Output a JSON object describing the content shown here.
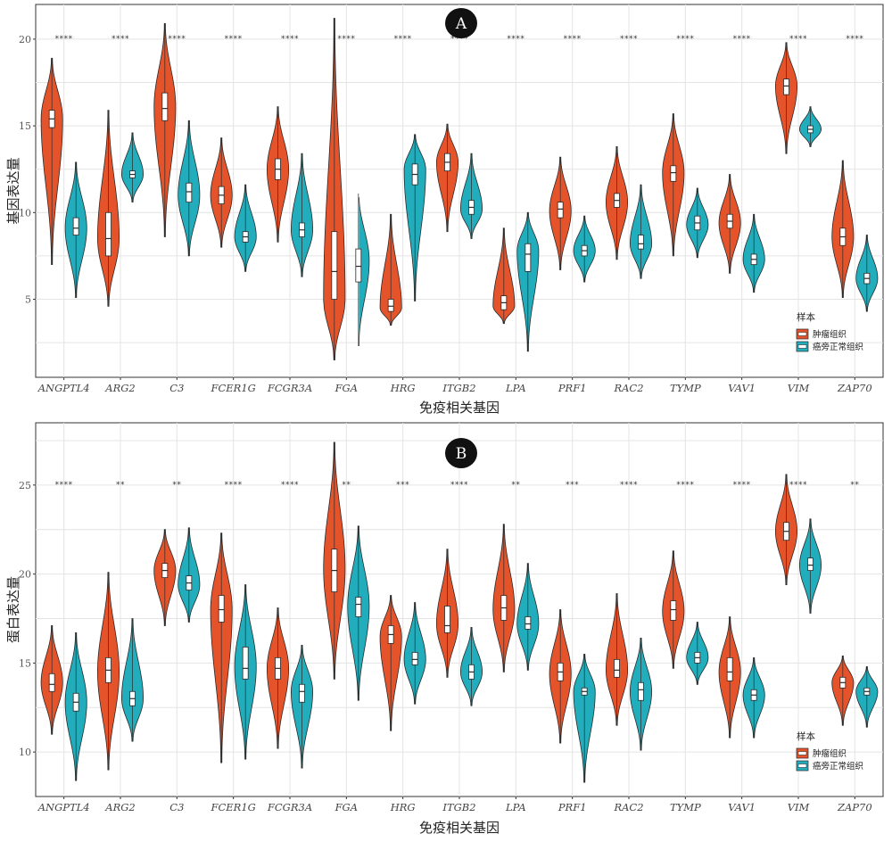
{
  "colors": {
    "tumor": "#E5532B",
    "normal": "#22ADBC",
    "outline": "#2a2a2a"
  },
  "xlabel": "免疫相关基因",
  "legend": {
    "title": "样本",
    "labels": [
      "肿瘤组织",
      "癌旁正常组织"
    ]
  },
  "chart_data": [
    {
      "type": "violin",
      "panel": "A",
      "ylabel": "基因表达量",
      "ylim": [
        0.5,
        22
      ],
      "yticks": [
        5,
        10,
        15,
        20
      ],
      "categories": [
        "ANGPTL4",
        "ARG2",
        "C3",
        "FCER1G",
        "FCGR3A",
        "FGA",
        "HRG",
        "ITGB2",
        "LPA",
        "PRF1",
        "RAC2",
        "TYMP",
        "VAV1",
        "VIM",
        "ZAP70"
      ],
      "significance": [
        "****",
        "****",
        "****",
        "****",
        "****",
        "****",
        "****",
        "****",
        "****",
        "****",
        "****",
        "****",
        "****",
        "****",
        "****"
      ],
      "sig_y": 19.9,
      "series": [
        {
          "name": "肿瘤组织",
          "groups": [
            {
              "min": 7.0,
              "max": 18.9,
              "q1": 14.9,
              "med": 15.4,
              "q3": 15.9,
              "mode": 15.4
            },
            {
              "min": 4.6,
              "max": 15.9,
              "q1": 7.5,
              "med": 8.5,
              "q3": 10.0,
              "mode": 8.5
            },
            {
              "min": 8.6,
              "max": 20.9,
              "q1": 15.3,
              "med": 16.0,
              "q3": 16.9,
              "mode": 16.1
            },
            {
              "min": 8.0,
              "max": 14.3,
              "q1": 10.5,
              "med": 11.0,
              "q3": 11.5,
              "mode": 11.0
            },
            {
              "min": 8.3,
              "max": 16.1,
              "q1": 11.9,
              "med": 12.5,
              "q3": 13.1,
              "mode": 12.5
            },
            {
              "min": 1.5,
              "max": 21.2,
              "q1": 5.0,
              "med": 6.6,
              "q3": 8.9,
              "mode": 5.0
            },
            {
              "min": 3.5,
              "max": 9.9,
              "q1": 4.3,
              "med": 4.6,
              "q3": 5.0,
              "mode": 4.5
            },
            {
              "min": 8.9,
              "max": 15.1,
              "q1": 12.4,
              "med": 12.9,
              "q3": 13.4,
              "mode": 12.9
            },
            {
              "min": 3.6,
              "max": 9.1,
              "q1": 4.4,
              "med": 4.8,
              "q3": 5.2,
              "mode": 4.6
            },
            {
              "min": 6.7,
              "max": 13.2,
              "q1": 9.7,
              "med": 10.2,
              "q3": 10.6,
              "mode": 10.1
            },
            {
              "min": 7.3,
              "max": 13.8,
              "q1": 10.3,
              "med": 10.7,
              "q3": 11.1,
              "mode": 10.6
            },
            {
              "min": 7.5,
              "max": 15.7,
              "q1": 11.8,
              "med": 12.3,
              "q3": 12.7,
              "mode": 12.3
            },
            {
              "min": 6.5,
              "max": 12.2,
              "q1": 9.1,
              "med": 9.5,
              "q3": 9.9,
              "mode": 9.4
            },
            {
              "min": 13.4,
              "max": 19.8,
              "q1": 16.8,
              "med": 17.3,
              "q3": 17.7,
              "mode": 17.3
            },
            {
              "min": 5.1,
              "max": 13.0,
              "q1": 8.1,
              "med": 8.6,
              "q3": 9.1,
              "mode": 8.6
            }
          ]
        },
        {
          "name": "癌旁正常组织",
          "groups": [
            {
              "min": 5.1,
              "max": 12.9,
              "q1": 8.7,
              "med": 9.1,
              "q3": 9.7,
              "mode": 9.1
            },
            {
              "min": 10.6,
              "max": 14.6,
              "q1": 12.0,
              "med": 12.2,
              "q3": 12.4,
              "mode": 12.2
            },
            {
              "min": 7.5,
              "max": 15.3,
              "q1": 10.6,
              "med": 11.2,
              "q3": 11.7,
              "mode": 11.0
            },
            {
              "min": 6.6,
              "max": 11.6,
              "q1": 8.3,
              "med": 8.6,
              "q3": 8.9,
              "mode": 8.6
            },
            {
              "min": 6.3,
              "max": 13.4,
              "q1": 8.6,
              "med": 9.0,
              "q3": 9.4,
              "mode": 9.0
            },
            {
              "min": 2.3,
              "max": 11.1,
              "q1": 6.0,
              "med": 6.9,
              "q3": 7.9,
              "mode": 7.2
            },
            {
              "min": 4.9,
              "max": 14.5,
              "q1": 11.6,
              "med": 12.2,
              "q3": 12.8,
              "mode": 12.5
            },
            {
              "min": 8.5,
              "max": 13.4,
              "q1": 9.9,
              "med": 10.3,
              "q3": 10.7,
              "mode": 10.2
            },
            {
              "min": 2.0,
              "max": 10.0,
              "q1": 6.6,
              "med": 7.6,
              "q3": 8.2,
              "mode": 7.8
            },
            {
              "min": 6.0,
              "max": 9.8,
              "q1": 7.5,
              "med": 7.8,
              "q3": 8.1,
              "mode": 7.8
            },
            {
              "min": 6.2,
              "max": 11.6,
              "q1": 7.9,
              "med": 8.2,
              "q3": 8.7,
              "mode": 8.2
            },
            {
              "min": 7.4,
              "max": 11.4,
              "q1": 9.0,
              "med": 9.4,
              "q3": 9.8,
              "mode": 9.3
            },
            {
              "min": 5.4,
              "max": 9.9,
              "q1": 7.0,
              "med": 7.3,
              "q3": 7.6,
              "mode": 7.3
            },
            {
              "min": 13.8,
              "max": 16.1,
              "q1": 14.6,
              "med": 14.8,
              "q3": 15.0,
              "mode": 14.8
            },
            {
              "min": 4.3,
              "max": 8.7,
              "q1": 5.9,
              "med": 6.2,
              "q3": 6.5,
              "mode": 6.2
            }
          ]
        }
      ]
    },
    {
      "type": "violin",
      "panel": "B",
      "ylabel": "蛋白表达量",
      "ylim": [
        7.5,
        28.5
      ],
      "yticks": [
        10,
        15,
        20,
        25
      ],
      "categories": [
        "ANGPTL4",
        "ARG2",
        "C3",
        "FCER1G",
        "FCGR3A",
        "FGA",
        "HRG",
        "ITGB2",
        "LPA",
        "PRF1",
        "RAC2",
        "TYMP",
        "VAV1",
        "VIM",
        "ZAP70"
      ],
      "significance": [
        "****",
        "**",
        "**",
        "****",
        "****",
        "**",
        "***",
        "****",
        "**",
        "***",
        "****",
        "****",
        "****",
        "****",
        "**"
      ],
      "sig_y": 24.9,
      "series": [
        {
          "name": "肿瘤组织",
          "groups": [
            {
              "min": 11.0,
              "max": 17.1,
              "q1": 13.4,
              "med": 13.8,
              "q3": 14.4,
              "mode": 13.9
            },
            {
              "min": 9.0,
              "max": 20.1,
              "q1": 13.9,
              "med": 14.6,
              "q3": 15.3,
              "mode": 14.5
            },
            {
              "min": 17.1,
              "max": 22.5,
              "q1": 19.8,
              "med": 20.2,
              "q3": 20.6,
              "mode": 20.2
            },
            {
              "min": 9.4,
              "max": 22.3,
              "q1": 17.3,
              "med": 18.0,
              "q3": 18.8,
              "mode": 18.0
            },
            {
              "min": 10.2,
              "max": 18.1,
              "q1": 14.1,
              "med": 14.7,
              "q3": 15.3,
              "mode": 14.7
            },
            {
              "min": 14.1,
              "max": 27.4,
              "q1": 19.0,
              "med": 20.2,
              "q3": 21.4,
              "mode": 20.3
            },
            {
              "min": 11.2,
              "max": 18.8,
              "q1": 16.1,
              "med": 16.6,
              "q3": 17.1,
              "mode": 16.5
            },
            {
              "min": 14.2,
              "max": 21.4,
              "q1": 16.7,
              "med": 17.1,
              "q3": 18.2,
              "mode": 17.2
            },
            {
              "min": 14.5,
              "max": 22.8,
              "q1": 17.4,
              "med": 18.1,
              "q3": 18.8,
              "mode": 18.0
            },
            {
              "min": 10.5,
              "max": 18.0,
              "q1": 14.0,
              "med": 14.5,
              "q3": 15.0,
              "mode": 14.4
            },
            {
              "min": 11.5,
              "max": 18.9,
              "q1": 14.2,
              "med": 14.6,
              "q3": 15.2,
              "mode": 14.6
            },
            {
              "min": 14.7,
              "max": 21.3,
              "q1": 17.4,
              "med": 18.0,
              "q3": 18.5,
              "mode": 17.9
            },
            {
              "min": 10.8,
              "max": 17.6,
              "q1": 14.0,
              "med": 14.5,
              "q3": 15.3,
              "mode": 14.5
            },
            {
              "min": 19.4,
              "max": 25.6,
              "q1": 21.9,
              "med": 22.4,
              "q3": 22.9,
              "mode": 22.4
            },
            {
              "min": 11.5,
              "max": 15.4,
              "q1": 13.6,
              "med": 13.9,
              "q3": 14.2,
              "mode": 13.9
            }
          ]
        },
        {
          "name": "癌旁正常组织",
          "groups": [
            {
              "min": 8.4,
              "max": 16.7,
              "q1": 12.3,
              "med": 12.8,
              "q3": 13.3,
              "mode": 12.8
            },
            {
              "min": 10.6,
              "max": 17.5,
              "q1": 12.6,
              "med": 13.0,
              "q3": 13.4,
              "mode": 13.0
            },
            {
              "min": 17.3,
              "max": 22.6,
              "q1": 19.1,
              "med": 19.5,
              "q3": 19.9,
              "mode": 19.4
            },
            {
              "min": 9.6,
              "max": 19.4,
              "q1": 14.1,
              "med": 14.7,
              "q3": 15.9,
              "mode": 14.8
            },
            {
              "min": 9.1,
              "max": 16.0,
              "q1": 12.8,
              "med": 13.4,
              "q3": 13.8,
              "mode": 13.4
            },
            {
              "min": 12.9,
              "max": 22.7,
              "q1": 17.6,
              "med": 18.3,
              "q3": 18.7,
              "mode": 18.2
            },
            {
              "min": 12.7,
              "max": 18.4,
              "q1": 14.9,
              "med": 15.2,
              "q3": 15.6,
              "mode": 15.2
            },
            {
              "min": 12.6,
              "max": 17.0,
              "q1": 14.1,
              "med": 14.5,
              "q3": 14.9,
              "mode": 14.5
            },
            {
              "min": 14.6,
              "max": 20.6,
              "q1": 16.9,
              "med": 17.2,
              "q3": 17.6,
              "mode": 17.2
            },
            {
              "min": 8.3,
              "max": 15.5,
              "q1": 13.2,
              "med": 13.4,
              "q3": 13.6,
              "mode": 13.4
            },
            {
              "min": 10.1,
              "max": 16.4,
              "q1": 12.9,
              "med": 13.5,
              "q3": 13.9,
              "mode": 13.4
            },
            {
              "min": 13.8,
              "max": 17.3,
              "q1": 15.0,
              "med": 15.3,
              "q3": 15.6,
              "mode": 15.3
            },
            {
              "min": 10.8,
              "max": 15.3,
              "q1": 12.9,
              "med": 13.2,
              "q3": 13.5,
              "mode": 13.2
            },
            {
              "min": 17.8,
              "max": 23.1,
              "q1": 20.2,
              "med": 20.5,
              "q3": 20.9,
              "mode": 20.5
            },
            {
              "min": 11.4,
              "max": 14.8,
              "q1": 13.2,
              "med": 13.4,
              "q3": 13.6,
              "mode": 13.4
            }
          ]
        }
      ]
    }
  ]
}
